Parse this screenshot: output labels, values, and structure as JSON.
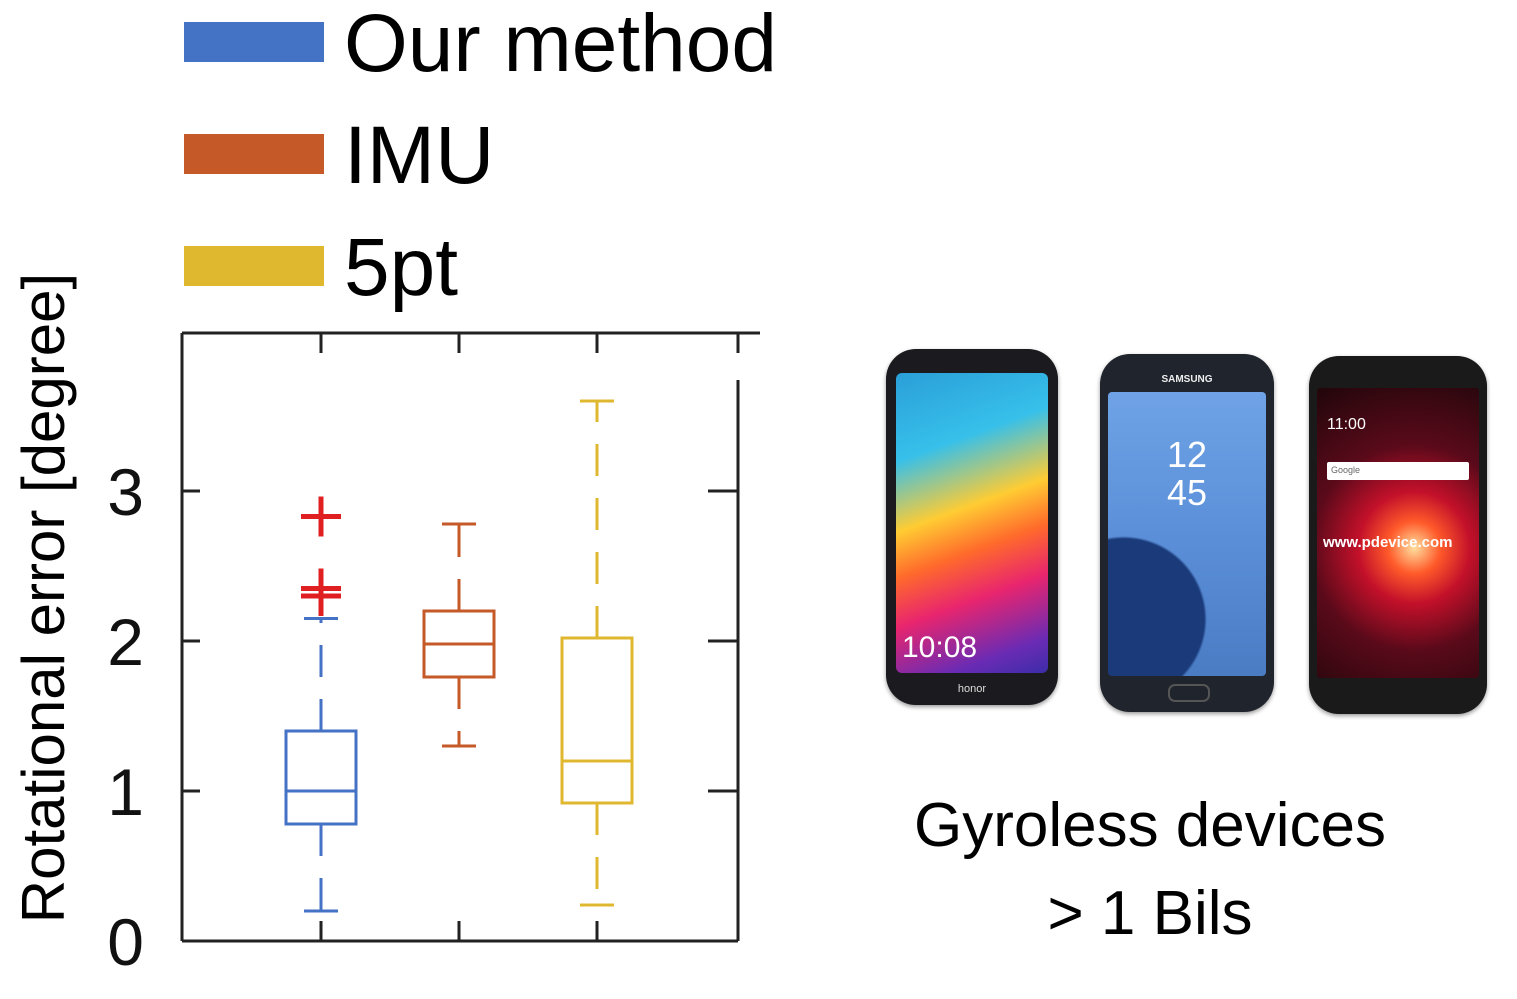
{
  "chart_data": {
    "type": "box",
    "ylabel": "Rotational error [degree]",
    "ylim": [
      0,
      4
    ],
    "yticks": [
      0,
      1,
      2,
      3
    ],
    "legend_position": "top-left",
    "series": [
      {
        "name": "Our method",
        "color": "#4472c4",
        "whisker_low": 0.2,
        "q1": 0.78,
        "median": 1.0,
        "q3": 1.4,
        "whisker_high": 2.15,
        "outliers": [
          2.3,
          2.35,
          2.83
        ],
        "outlier_color": "#e02020"
      },
      {
        "name": "IMU",
        "color": "#c55a28",
        "whisker_low": 1.3,
        "q1": 1.76,
        "median": 1.98,
        "q3": 2.2,
        "whisker_high": 2.78,
        "outliers": []
      },
      {
        "name": "5pt",
        "color": "#e0b830",
        "whisker_low": 0.24,
        "q1": 0.92,
        "median": 1.2,
        "q3": 2.02,
        "whisker_high": 3.6,
        "outliers": []
      }
    ]
  },
  "devices": {
    "caption_line1": "Gyroless devices",
    "caption_line2": "> 1 Bils",
    "phones": [
      {
        "brand": "honor",
        "time": "10:08"
      },
      {
        "brand": "SAMSUNG",
        "time": "12\n45",
        "time_top": "12",
        "time_bottom": "45"
      },
      {
        "brand": "",
        "time": "11:00",
        "watermark": "www.pdevice.com",
        "search": "Google"
      }
    ]
  }
}
